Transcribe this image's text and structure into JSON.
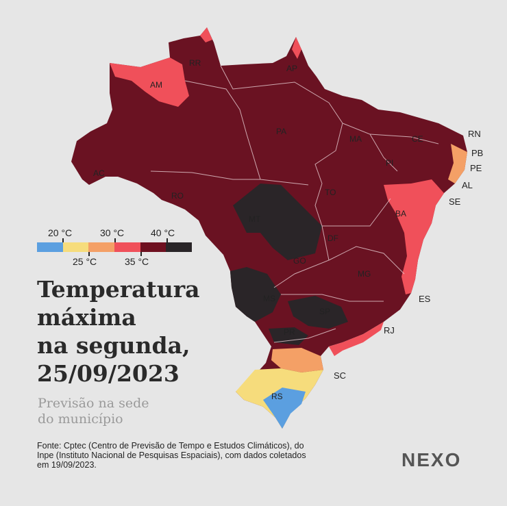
{
  "title_lines": [
    "Temperatura",
    "máxima",
    "na segunda,",
    "25/09/2023"
  ],
  "subtitle_lines": [
    "Previsão na sede",
    "do município"
  ],
  "legend": {
    "top_labels": [
      "20 °C",
      "30 °C",
      "40 °C"
    ],
    "bottom_labels": [
      "25 °C",
      "35 °C"
    ],
    "colors": [
      "#5b9fe0",
      "#f6dc7c",
      "#f4a066",
      "#f0505a",
      "#6e1020",
      "#2a2528"
    ]
  },
  "state_labels": [
    "RR",
    "AP",
    "AM",
    "PA",
    "MA",
    "CE",
    "AC",
    "PI",
    "TO",
    "RO",
    "MT",
    "BA",
    "DF",
    "GO",
    "MG",
    "MS",
    "SP",
    "PR",
    "RS"
  ],
  "outside_labels": [
    "RN",
    "PB",
    "PE",
    "AL",
    "SE",
    "ES",
    "RJ",
    "SC"
  ],
  "source_lines": [
    "Fonte: Cptec (Centro de Previsão de Tempo e Estudos Climáticos), do",
    "Inpe (Instituto Nacional de Pesquisas Espaciais), com dados coletados",
    "em 19/09/2023."
  ],
  "logo": "NEXO"
}
